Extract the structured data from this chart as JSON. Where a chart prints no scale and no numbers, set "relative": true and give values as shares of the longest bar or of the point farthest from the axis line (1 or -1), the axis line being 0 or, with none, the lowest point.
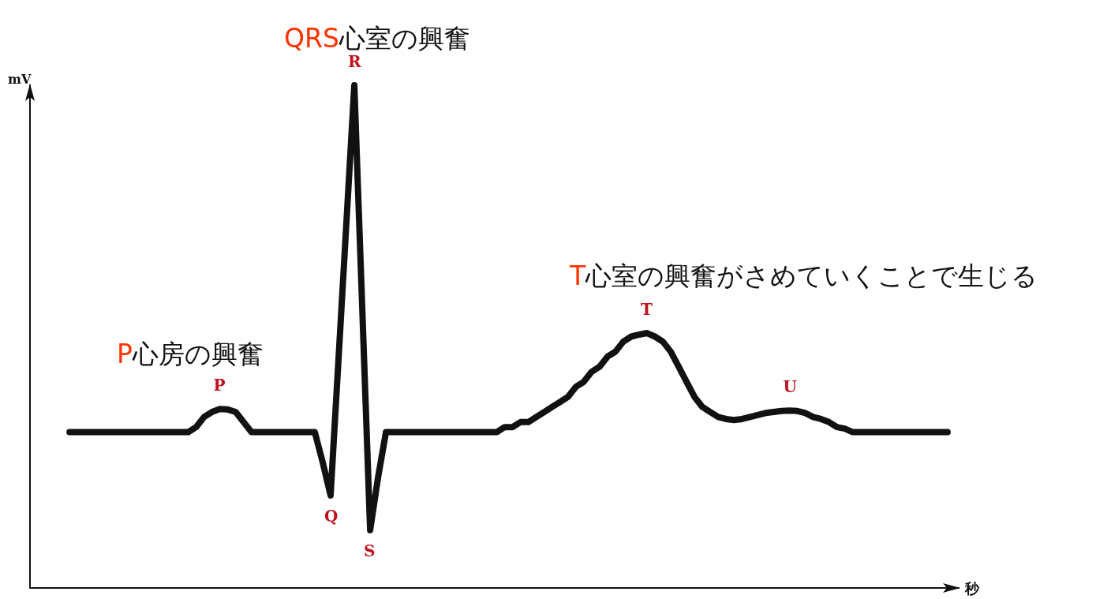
{
  "chart_data": {
    "type": "line",
    "relative": true,
    "xlabel": "秒",
    "ylabel": "mV",
    "grid": false,
    "line_style": "solid",
    "categories": [
      null,
      null,
      null,
      null,
      null,
      null,
      null,
      null,
      null,
      null,
      null,
      null,
      null,
      null,
      null,
      null,
      null,
      null,
      null,
      null,
      null,
      null,
      null,
      null,
      null,
      null,
      null,
      null,
      null,
      null,
      null,
      null,
      null,
      null,
      null,
      null,
      null,
      null,
      null,
      null,
      null,
      null,
      null,
      null,
      null,
      null,
      null,
      null,
      null,
      null,
      null,
      null,
      null,
      null,
      null,
      null,
      null,
      null,
      null,
      null,
      null,
      null,
      null,
      null,
      null,
      null,
      null,
      null,
      null,
      null,
      null,
      null,
      null,
      null,
      null,
      null,
      null,
      null,
      null,
      null,
      null,
      null,
      null,
      null,
      null,
      null,
      null,
      null,
      null,
      null,
      null,
      null,
      null,
      null,
      null,
      null,
      null,
      null,
      null,
      null,
      null,
      null,
      null,
      null,
      null,
      null,
      null,
      null,
      null,
      null,
      null,
      null
    ],
    "series": [
      {
        "color": "#111111",
        "values": [
          0.31,
          0.31,
          0.31,
          0.31,
          0.31,
          0.31,
          0.31,
          0.31,
          0.31,
          0.31,
          0.31,
          0.31,
          0.31,
          0.31,
          0.31,
          0.31,
          0.32,
          0.34,
          0.35,
          0.356,
          0.355,
          0.35,
          0.33,
          0.31,
          0.31,
          0.31,
          0.31,
          0.31,
          0.31,
          0.31,
          0.31,
          0.31,
          0.25,
          0.184,
          0.455,
          0.727,
          1.0,
          0.557,
          0.115,
          0.22,
          0.31,
          0.31,
          0.31,
          0.31,
          0.31,
          0.31,
          0.31,
          0.31,
          0.31,
          0.31,
          0.31,
          0.31,
          0.31,
          0.31,
          0.31,
          0.32,
          0.32,
          0.33,
          0.33,
          0.34,
          0.35,
          0.36,
          0.37,
          0.38,
          0.4,
          0.41,
          0.43,
          0.44,
          0.46,
          0.47,
          0.49,
          0.5,
          0.504,
          0.507,
          0.5,
          0.49,
          0.47,
          0.44,
          0.41,
          0.38,
          0.36,
          0.35,
          0.34,
          0.336,
          0.334,
          0.336,
          0.34,
          0.344,
          0.348,
          0.35,
          0.352,
          0.353,
          0.352,
          0.348,
          0.34,
          0.336,
          0.33,
          0.32,
          0.317,
          0.31,
          0.31,
          0.31,
          0.31,
          0.31,
          0.31,
          0.31,
          0.31,
          0.31,
          0.31,
          0.31,
          0.31,
          0.31
        ]
      }
    ],
    "annotations": [
      {
        "text": "P",
        "y": 0.356
      },
      {
        "text": "Q",
        "y": 0.184
      },
      {
        "text": "R",
        "y": 1.0
      },
      {
        "text": "S",
        "y": 0.115
      },
      {
        "text": "T",
        "y": 0.507
      },
      {
        "text": "U",
        "y": 0.353
      },
      "QRS心室の興奮",
      "P心房の興奮",
      "T心室の興奮がさめていくことで生じる"
    ]
  }
}
